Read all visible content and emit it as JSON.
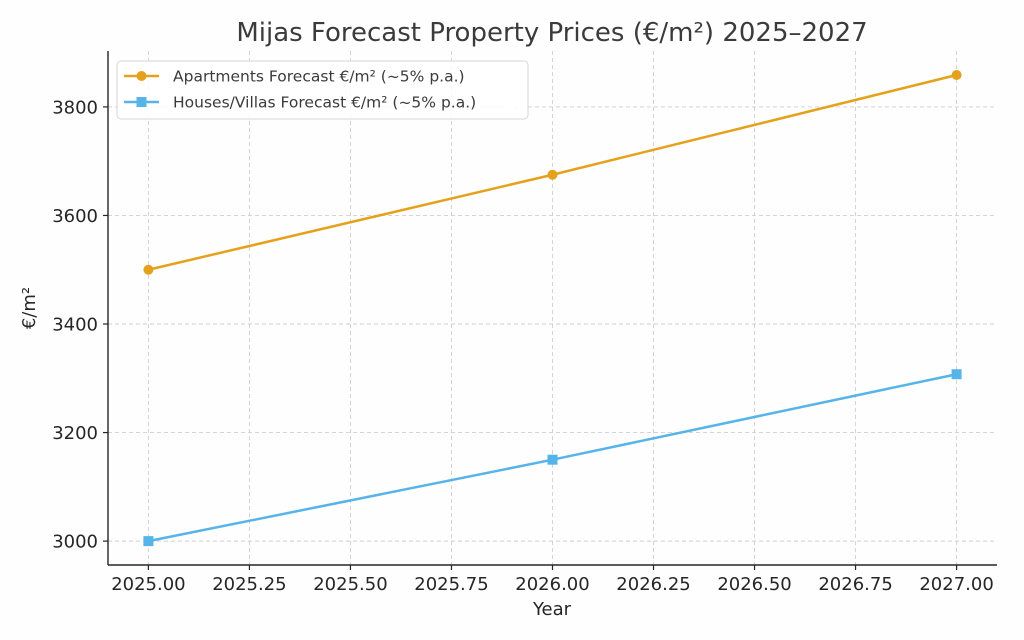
{
  "chart_data": {
    "type": "line",
    "title": "Mijas Forecast Property Prices (€/m²) 2025–2027",
    "xlabel": "Year",
    "ylabel": "€/m²",
    "xlim": [
      2024.9,
      2027.1
    ],
    "ylim": [
      2956,
      3903
    ],
    "xticks": [
      2025.0,
      2025.25,
      2025.5,
      2025.75,
      2026.0,
      2026.25,
      2026.5,
      2026.75,
      2027.0
    ],
    "xtick_labels": [
      "2025.00",
      "2025.25",
      "2025.50",
      "2025.75",
      "2026.00",
      "2026.25",
      "2026.50",
      "2026.75",
      "2027.00"
    ],
    "yticks": [
      3000,
      3200,
      3400,
      3600,
      3800
    ],
    "ytick_labels": [
      "3000",
      "3200",
      "3400",
      "3600",
      "3800"
    ],
    "grid": true,
    "legend_position": "top-left",
    "x": [
      2025,
      2026,
      2027
    ],
    "series": [
      {
        "name": "Apartments Forecast €/m² (~5% p.a.)",
        "values": [
          3500,
          3675,
          3858.75
        ],
        "color": "#e5a11c",
        "marker": "circle"
      },
      {
        "name": "Houses/Villas Forecast €/m² (~5% p.a.)",
        "values": [
          3000,
          3150,
          3307.5
        ],
        "color": "#56b4e9",
        "marker": "square"
      }
    ]
  }
}
